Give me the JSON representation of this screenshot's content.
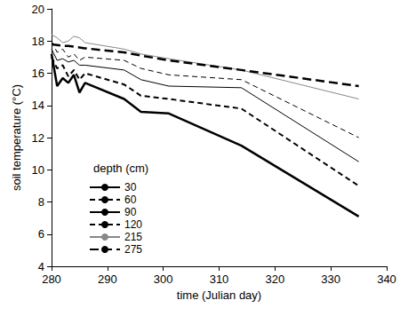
{
  "chart_data": {
    "type": "line",
    "x_label": "time (Julian day)",
    "y_label": "soil temperature (°C)",
    "legend_title": "depth (cm)",
    "legend": "lower left",
    "grid": false,
    "x": [
      280,
      281,
      282,
      283,
      284,
      285,
      286,
      293,
      296,
      301,
      314,
      335
    ],
    "xlim": [
      280,
      340
    ],
    "xticks": [
      280,
      290,
      300,
      310,
      320,
      330,
      340
    ],
    "ylim": [
      4,
      20
    ],
    "yticks": [
      4,
      6,
      8,
      10,
      12,
      14,
      16,
      18,
      20
    ],
    "series": [
      {
        "name": "30",
        "color": "#000000",
        "line_style": "solid",
        "values": [
          17.2,
          15.2,
          15.7,
          15.4,
          15.9,
          14.8,
          15.4,
          14.4,
          13.6,
          13.5,
          11.5,
          7.1
        ]
      },
      {
        "name": "60",
        "color": "#000000",
        "line_style": "dashed",
        "values": [
          17.0,
          16.3,
          16.5,
          15.8,
          16.2,
          15.6,
          16.0,
          15.3,
          14.6,
          14.4,
          13.8,
          9.0
        ]
      },
      {
        "name": "90",
        "color": "#000000",
        "line_style": "solid",
        "values": [
          17.5,
          16.8,
          16.9,
          16.7,
          16.8,
          16.5,
          16.5,
          16.2,
          15.6,
          15.2,
          15.1,
          10.5
        ]
      },
      {
        "name": "120",
        "color": "#000000",
        "line_style": "dashed",
        "values": [
          18.0,
          17.3,
          17.5,
          17.0,
          17.2,
          16.8,
          17.0,
          16.8,
          16.3,
          15.9,
          15.6,
          12.0
        ]
      },
      {
        "name": "215",
        "color": "#888888",
        "line_style": "solid",
        "values": [
          18.4,
          18.2,
          17.9,
          18.0,
          18.3,
          18.2,
          17.9,
          17.5,
          17.2,
          16.9,
          16.2,
          14.4
        ]
      },
      {
        "name": "275",
        "color": "#000000",
        "line_style": "dashed",
        "values": [
          17.8,
          17.75,
          17.7,
          17.7,
          17.65,
          17.6,
          17.55,
          17.3,
          17.1,
          16.8,
          16.2,
          15.2
        ]
      }
    ]
  }
}
